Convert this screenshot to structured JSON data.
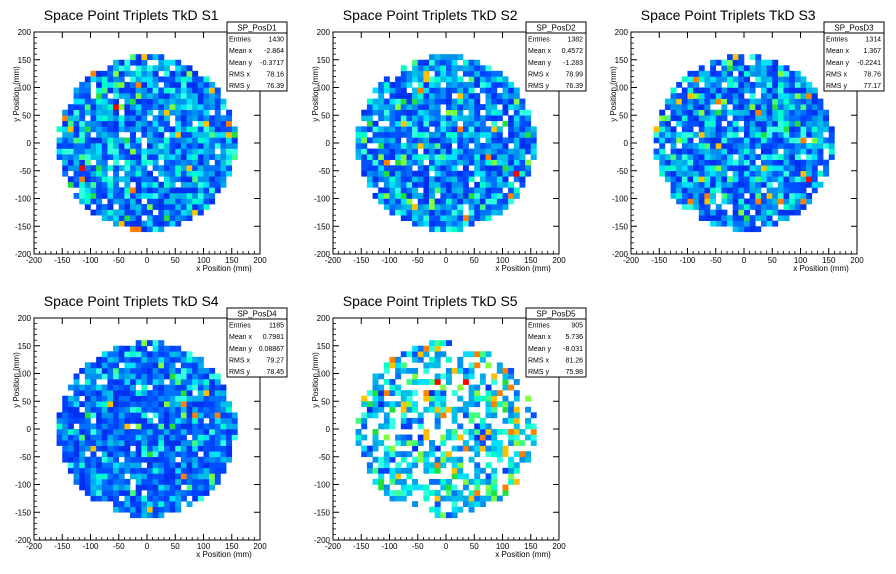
{
  "chart_data": [
    {
      "type": "heatmap",
      "title": "Space Point Triplets TkD S1",
      "xlabel": "x Position (mm)",
      "ylabel": "y Position (mm)",
      "xlim": [
        -200,
        200
      ],
      "ylim": [
        -200,
        200
      ],
      "xticks": [
        -200,
        -150,
        -100,
        -50,
        0,
        50,
        100,
        150,
        200
      ],
      "yticks": [
        -200,
        -150,
        -100,
        -50,
        0,
        50,
        100,
        150,
        200
      ],
      "grid": false,
      "disk_radius": 160,
      "bin_width": 10,
      "hot_bins": [
        [
          -60,
          60
        ],
        [
          -120,
          -50
        ]
      ],
      "stats": {
        "name": "SP_PosD1",
        "rows": [
          {
            "label": "Entries",
            "value": "1430"
          },
          {
            "label": "Mean x",
            "value": "-2.864"
          },
          {
            "label": "Mean y",
            "value": "-0.3717"
          },
          {
            "label": "RMS x",
            "value": "78.16"
          },
          {
            "label": "RMS y",
            "value": "76.39"
          }
        ]
      }
    },
    {
      "type": "heatmap",
      "title": "Space Point Triplets TkD S2",
      "xlabel": "x Position (mm)",
      "ylabel": "y Position (mm)",
      "xlim": [
        -200,
        200
      ],
      "ylim": [
        -200,
        200
      ],
      "xticks": [
        -200,
        -150,
        -100,
        -50,
        0,
        50,
        100,
        150,
        200
      ],
      "yticks": [
        -200,
        -150,
        -100,
        -50,
        0,
        50,
        100,
        150,
        200
      ],
      "grid": false,
      "disk_radius": 160,
      "bin_width": 10,
      "hot_bins": [
        [
          120,
          -60
        ]
      ],
      "stats": {
        "name": "SP_PosD2",
        "rows": [
          {
            "label": "Entries",
            "value": "1382"
          },
          {
            "label": "Mean x",
            "value": "0.4572"
          },
          {
            "label": "Mean y",
            "value": "-1.283"
          },
          {
            "label": "RMS x",
            "value": "78.99"
          },
          {
            "label": "RMS y",
            "value": "76.39"
          }
        ]
      }
    },
    {
      "type": "heatmap",
      "title": "Space Point Triplets TkD S3",
      "xlabel": "x Position (mm)",
      "ylabel": "y Position (mm)",
      "xlim": [
        -200,
        200
      ],
      "ylim": [
        -200,
        200
      ],
      "xticks": [
        -200,
        -150,
        -100,
        -50,
        0,
        50,
        100,
        150,
        200
      ],
      "yticks": [
        -200,
        -150,
        -100,
        -50,
        0,
        50,
        100,
        150,
        200
      ],
      "grid": false,
      "disk_radius": 160,
      "bin_width": 10,
      "hot_bins": [
        [
          110,
          -70
        ]
      ],
      "stats": {
        "name": "SP_PosD3",
        "rows": [
          {
            "label": "Entries",
            "value": "1314"
          },
          {
            "label": "Mean x",
            "value": "1.367"
          },
          {
            "label": "Mean y",
            "value": "-0.2241"
          },
          {
            "label": "RMS x",
            "value": "78.76"
          },
          {
            "label": "RMS y",
            "value": "77.17"
          }
        ]
      }
    },
    {
      "type": "heatmap",
      "title": "Space Point Triplets TkD S4",
      "xlabel": "x Position (mm)",
      "ylabel": "y Position (mm)",
      "xlim": [
        -200,
        200
      ],
      "ylim": [
        -200,
        200
      ],
      "xticks": [
        -200,
        -150,
        -100,
        -50,
        0,
        50,
        100,
        150,
        200
      ],
      "yticks": [
        -200,
        -150,
        -100,
        -50,
        0,
        50,
        100,
        150,
        200
      ],
      "grid": false,
      "disk_radius": 160,
      "bin_width": 10,
      "hot_bins": [],
      "stats": {
        "name": "SP_PosD4",
        "rows": [
          {
            "label": "Entries",
            "value": "1185"
          },
          {
            "label": "Mean x",
            "value": "0.7981"
          },
          {
            "label": "Mean y",
            "value": "0.08867"
          },
          {
            "label": "RMS x",
            "value": "79.27"
          },
          {
            "label": "RMS y",
            "value": "78.45"
          }
        ]
      }
    },
    {
      "type": "heatmap",
      "title": "Space Point Triplets TkD S5",
      "xlabel": "x Position (mm)",
      "ylabel": "y Position (mm)",
      "xlim": [
        -200,
        200
      ],
      "ylim": [
        -200,
        200
      ],
      "xticks": [
        -200,
        -150,
        -100,
        -50,
        0,
        50,
        100,
        150,
        200
      ],
      "yticks": [
        -200,
        -150,
        -100,
        -50,
        0,
        50,
        100,
        150,
        200
      ],
      "grid": false,
      "disk_radius": 160,
      "bin_width": 10,
      "hot_bins": [
        [
          -20,
          80
        ],
        [
          30,
          80
        ]
      ],
      "stats": {
        "name": "SP_PosD5",
        "rows": [
          {
            "label": "Entries",
            "value": "905"
          },
          {
            "label": "Mean x",
            "value": "5.736"
          },
          {
            "label": "Mean y",
            "value": "-8.031"
          },
          {
            "label": "RMS x",
            "value": "81.26"
          },
          {
            "label": "RMS y",
            "value": "75.98"
          }
        ]
      }
    }
  ],
  "palette": {
    "high": [
      "#0030f0",
      "#0040ff",
      "#0050ff",
      "#0070ff"
    ],
    "mid": [
      "#0090f0",
      "#00aaee",
      "#00c0e8"
    ],
    "light": [
      "#00e0ff",
      "#30ffe0",
      "#00ffcc"
    ],
    "warm": [
      "#40ff80",
      "#20e040",
      "#80ff40",
      "#ffc000",
      "#ff8000"
    ],
    "hot": "#ff0000"
  }
}
